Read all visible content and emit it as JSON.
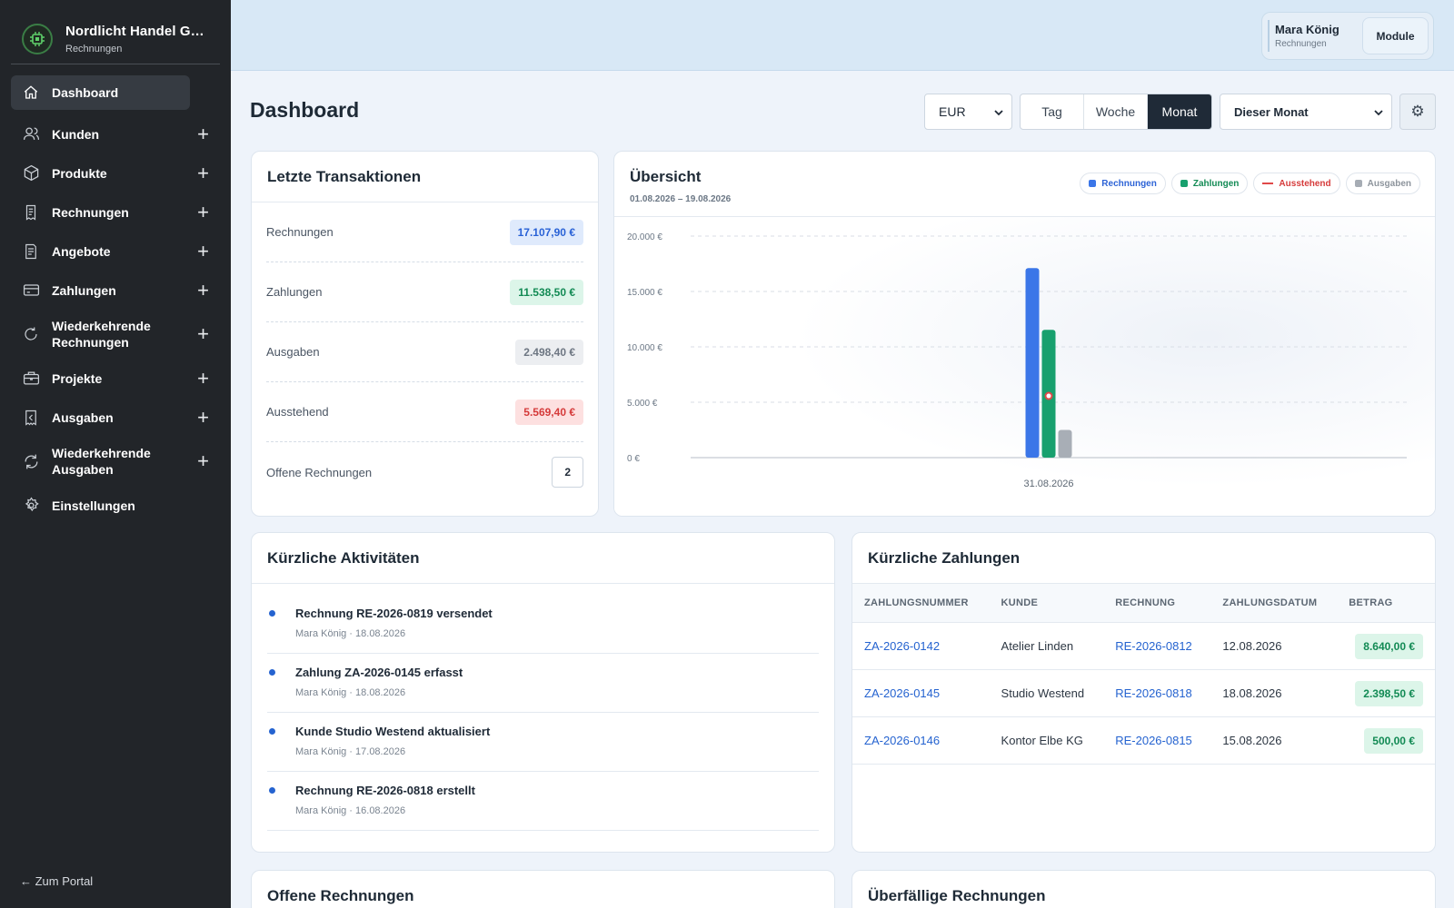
{
  "sidebar": {
    "company": "Nordlicht Handel G…",
    "module": "Rechnungen",
    "items": [
      {
        "label": "Dashboard",
        "icon": "home-icon"
      },
      {
        "label": "Kunden",
        "icon": "users-icon"
      },
      {
        "label": "Produkte",
        "icon": "box-icon"
      },
      {
        "label": "Rechnungen",
        "icon": "invoice-icon"
      },
      {
        "label": "Angebote",
        "icon": "quote-icon"
      },
      {
        "label": "Zahlungen",
        "icon": "credit-card-icon"
      },
      {
        "label": "Wiederkehrende Rechnungen",
        "icon": "recurring-icon"
      },
      {
        "label": "Projekte",
        "icon": "briefcase-icon"
      },
      {
        "label": "Ausgaben",
        "icon": "receipt-icon"
      },
      {
        "label": "Wiederkehrende Ausgaben",
        "icon": "recurring-expense-icon"
      },
      {
        "label": "Einstellungen",
        "icon": "gear-icon"
      }
    ],
    "portal_link": "← Zum Portal"
  },
  "topbar": {
    "user_name": "Mara König",
    "user_role": "Rechnungen",
    "module_button": "Module"
  },
  "header": {
    "title": "Dashboard",
    "currency": "EUR",
    "range_tabs": [
      "Tag",
      "Woche",
      "Monat"
    ],
    "active_range": "Monat",
    "period": "Dieser Monat",
    "settings_icon": "⚙"
  },
  "transactions": {
    "title": "Letzte Transaktionen",
    "rows": [
      {
        "label": "Rechnungen",
        "value": "17.107,90 €"
      },
      {
        "label": "Zahlungen",
        "value": "11.538,50 €"
      },
      {
        "label": "Ausgaben",
        "value": "2.498,40 €"
      },
      {
        "label": "Ausstehend",
        "value": "5.569,40 €"
      },
      {
        "label": "Offene Rechnungen",
        "value": "2"
      }
    ]
  },
  "overview": {
    "title": "Übersicht",
    "range": "01.08.2026 – 19.08.2026",
    "legend": [
      {
        "label": "Rechnungen",
        "color": "#3b76e8"
      },
      {
        "label": "Zahlungen",
        "color": "#18a06e"
      },
      {
        "label": "Ausstehend",
        "color": "#e04848"
      },
      {
        "label": "Ausgaben",
        "color": "#a6acb4"
      }
    ]
  },
  "chart_data": {
    "type": "bar",
    "categories": [
      "31.08.2026"
    ],
    "series": [
      {
        "name": "Rechnungen",
        "values": [
          17107.9
        ]
      },
      {
        "name": "Zahlungen",
        "values": [
          11538.5
        ]
      },
      {
        "name": "Ausgaben",
        "values": [
          2498.4
        ]
      },
      {
        "name": "Ausstehend",
        "values": [
          5569.4
        ]
      }
    ],
    "y_ticks": [
      "0 €",
      "5.000 €",
      "10.000 €",
      "15.000 €",
      "20.000 €"
    ],
    "ylim": [
      0,
      20000
    ],
    "grid": true,
    "legend_position": "top-right"
  },
  "activities": {
    "title": "Kürzliche Aktivitäten",
    "items": [
      {
        "title": "Rechnung RE-2026-0819 versendet",
        "meta": "Mara König · 18.08.2026"
      },
      {
        "title": "Zahlung ZA-2026-0145 erfasst",
        "meta": "Mara König · 18.08.2026"
      },
      {
        "title": "Kunde Studio Westend aktualisiert",
        "meta": "Mara König · 17.08.2026"
      },
      {
        "title": "Rechnung RE-2026-0818 erstellt",
        "meta": "Mara König · 16.08.2026"
      }
    ]
  },
  "payments": {
    "title": "Kürzliche Zahlungen",
    "columns": [
      "ZAHLUNGSNUMMER",
      "KUNDE",
      "RECHNUNG",
      "ZAHLUNGSDATUM",
      "BETRAG"
    ],
    "rows": [
      {
        "number": "ZA-2026-0142",
        "customer": "Atelier Linden",
        "invoice": "RE-2026-0812",
        "date": "12.08.2026",
        "amount": "8.640,00 €"
      },
      {
        "number": "ZA-2026-0145",
        "customer": "Studio Westend",
        "invoice": "RE-2026-0818",
        "date": "18.08.2026",
        "amount": "2.398,50 €"
      },
      {
        "number": "ZA-2026-0146",
        "customer": "Kontor Elbe KG",
        "invoice": "RE-2026-0815",
        "date": "15.08.2026",
        "amount": "500,00 €"
      }
    ]
  },
  "open_invoices": {
    "title": "Offene Rechnungen"
  },
  "overdue_invoices": {
    "title": "Überfällige Rechnungen"
  }
}
